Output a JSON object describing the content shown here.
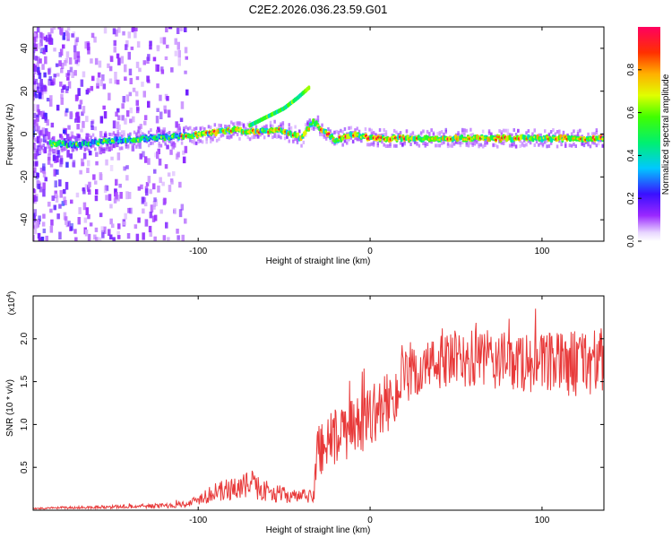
{
  "title": "C2E2.2026.036.23.59.G01",
  "chart_data": [
    {
      "type": "heatmap",
      "xlabel": "Height of straight line (km)",
      "ylabel": "Frequency (Hz)",
      "xlim": [
        -196,
        136
      ],
      "ylim": [
        -50,
        50
      ],
      "xticks": [
        -100,
        0,
        100
      ],
      "xtick_labels": [
        "-100",
        "0",
        "100"
      ],
      "yticks": [
        -40,
        -20,
        0,
        20,
        40
      ],
      "ytick_labels": [
        "-40",
        "-20",
        "0",
        "20",
        "40"
      ],
      "colorbar": {
        "label": "Normalized spectral amplitude",
        "range": [
          0,
          1
        ],
        "ticks": [
          0.0,
          0.2,
          0.4,
          0.6,
          0.8
        ],
        "tick_labels": [
          "0.0",
          "0.2",
          "0.4",
          "0.6",
          "0.8"
        ]
      },
      "main_ridge": [
        {
          "x": -196,
          "y": -4
        },
        {
          "x": -170,
          "y": -5
        },
        {
          "x": -150,
          "y": -3
        },
        {
          "x": -130,
          "y": -2
        },
        {
          "x": -110,
          "y": -1
        },
        {
          "x": -95,
          "y": 0
        },
        {
          "x": -80,
          "y": 2
        },
        {
          "x": -65,
          "y": 1
        },
        {
          "x": -55,
          "y": 2
        },
        {
          "x": -45,
          "y": 0
        },
        {
          "x": -40,
          "y": -2
        },
        {
          "x": -33,
          "y": 6
        },
        {
          "x": -28,
          "y": 2
        },
        {
          "x": -20,
          "y": -3
        },
        {
          "x": -10,
          "y": 0
        },
        {
          "x": 0,
          "y": -2
        },
        {
          "x": 10,
          "y": -2
        },
        {
          "x": 30,
          "y": -2
        },
        {
          "x": 60,
          "y": -2
        },
        {
          "x": 90,
          "y": -2
        },
        {
          "x": 136,
          "y": -2
        }
      ],
      "upper_ridge": [
        {
          "x": -70,
          "y": 4
        },
        {
          "x": -60,
          "y": 8
        },
        {
          "x": -50,
          "y": 12
        },
        {
          "x": -42,
          "y": 17
        },
        {
          "x": -35,
          "y": 22
        }
      ]
    },
    {
      "type": "line",
      "xlabel": "Height of straight line (km)",
      "ylabel": "SNR (10 * v/v)",
      "y_multiplier": "(x10",
      "y_multiplier_exp": "4",
      "y_multiplier_close": ")",
      "xlim": [
        -196,
        136
      ],
      "ylim": [
        0,
        2.5
      ],
      "xticks": [
        -100,
        0,
        100
      ],
      "xtick_labels": [
        "-100",
        "0",
        "100"
      ],
      "yticks": [
        0.5,
        1.0,
        1.5,
        2.0
      ],
      "ytick_labels": [
        "0.5",
        "1.0",
        "1.5",
        "2.0"
      ],
      "series": [
        {
          "color": "#e83a3a",
          "envelope": [
            {
              "x": -196,
              "mean": 0.02,
              "amp": 0.01
            },
            {
              "x": -150,
              "mean": 0.04,
              "amp": 0.02
            },
            {
              "x": -120,
              "mean": 0.05,
              "amp": 0.03
            },
            {
              "x": -105,
              "mean": 0.08,
              "amp": 0.04
            },
            {
              "x": -95,
              "mean": 0.18,
              "amp": 0.1
            },
            {
              "x": -80,
              "mean": 0.25,
              "amp": 0.14
            },
            {
              "x": -70,
              "mean": 0.3,
              "amp": 0.16
            },
            {
              "x": -60,
              "mean": 0.22,
              "amp": 0.12
            },
            {
              "x": -45,
              "mean": 0.16,
              "amp": 0.08
            },
            {
              "x": -33,
              "mean": 0.16,
              "amp": 0.08
            },
            {
              "x": -30,
              "mean": 0.75,
              "amp": 0.45
            },
            {
              "x": -20,
              "mean": 0.85,
              "amp": 0.35
            },
            {
              "x": -10,
              "mean": 0.95,
              "amp": 0.35
            },
            {
              "x": 0,
              "mean": 1.1,
              "amp": 0.35
            },
            {
              "x": 10,
              "mean": 1.25,
              "amp": 0.35
            },
            {
              "x": 20,
              "mean": 1.5,
              "amp": 0.35
            },
            {
              "x": 35,
              "mean": 1.7,
              "amp": 0.3
            },
            {
              "x": 50,
              "mean": 1.75,
              "amp": 0.35
            },
            {
              "x": 70,
              "mean": 1.75,
              "amp": 0.35
            },
            {
              "x": 100,
              "mean": 1.7,
              "amp": 0.35
            },
            {
              "x": 120,
              "mean": 1.72,
              "amp": 0.4
            },
            {
              "x": 136,
              "mean": 1.75,
              "amp": 0.4
            }
          ]
        }
      ]
    }
  ]
}
